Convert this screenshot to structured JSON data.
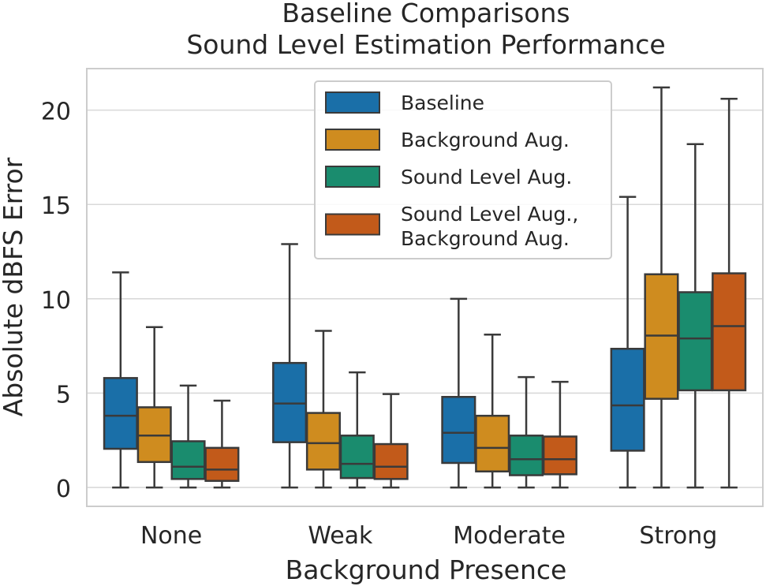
{
  "chart_data": {
    "type": "boxplot",
    "title_lines": [
      "Baseline Comparisons",
      "Sound Level Estimation Performance"
    ],
    "xlabel": "Background Presence",
    "ylabel": "Absolute dBFS Error",
    "ylim": [
      -1.0,
      22.2
    ],
    "yticks": [
      0,
      5,
      10,
      15,
      20
    ],
    "grid": "horizontal",
    "legend_position": "top-center",
    "categories": [
      "None",
      "Weak",
      "Moderate",
      "Strong"
    ],
    "series": [
      {
        "name": "Baseline",
        "legend_lines": [
          "Baseline"
        ],
        "color": "#1a6fa8",
        "boxes": [
          {
            "whislo": 0,
            "q1": 2.05,
            "med": 3.8,
            "q3": 5.8,
            "whishi": 11.4
          },
          {
            "whislo": 0,
            "q1": 2.4,
            "med": 4.45,
            "q3": 6.6,
            "whishi": 12.9
          },
          {
            "whislo": 0,
            "q1": 1.3,
            "med": 2.9,
            "q3": 4.8,
            "whishi": 10.0
          },
          {
            "whislo": 0,
            "q1": 1.95,
            "med": 4.35,
            "q3": 7.35,
            "whishi": 15.4
          }
        ]
      },
      {
        "name": "Background Aug.",
        "legend_lines": [
          "Background Aug."
        ],
        "color": "#cf8c1f",
        "boxes": [
          {
            "whislo": 0,
            "q1": 1.35,
            "med": 2.75,
            "q3": 4.25,
            "whishi": 8.5
          },
          {
            "whislo": 0,
            "q1": 0.95,
            "med": 2.35,
            "q3": 3.95,
            "whishi": 8.3
          },
          {
            "whislo": 0,
            "q1": 0.85,
            "med": 2.1,
            "q3": 3.8,
            "whishi": 8.1
          },
          {
            "whislo": 0,
            "q1": 4.7,
            "med": 8.05,
            "q3": 11.3,
            "whishi": 21.2
          }
        ]
      },
      {
        "name": "Sound Level Aug.",
        "legend_lines": [
          "Sound Level Aug."
        ],
        "color": "#1a8c6e",
        "boxes": [
          {
            "whislo": 0,
            "q1": 0.45,
            "med": 1.1,
            "q3": 2.45,
            "whishi": 5.4
          },
          {
            "whislo": 0,
            "q1": 0.5,
            "med": 1.25,
            "q3": 2.75,
            "whishi": 6.1
          },
          {
            "whislo": 0,
            "q1": 0.65,
            "med": 1.5,
            "q3": 2.75,
            "whishi": 5.85
          },
          {
            "whislo": 0,
            "q1": 5.15,
            "med": 7.9,
            "q3": 10.35,
            "whishi": 18.2
          }
        ]
      },
      {
        "name": "Sound Level Aug., Background Aug.",
        "legend_lines": [
          "Sound Level Aug.,",
          "Background Aug."
        ],
        "color": "#c25a1a",
        "boxes": [
          {
            "whislo": 0,
            "q1": 0.35,
            "med": 0.95,
            "q3": 2.1,
            "whishi": 4.6
          },
          {
            "whislo": 0,
            "q1": 0.45,
            "med": 1.1,
            "q3": 2.3,
            "whishi": 4.95
          },
          {
            "whislo": 0,
            "q1": 0.7,
            "med": 1.5,
            "q3": 2.7,
            "whishi": 5.6
          },
          {
            "whislo": 0,
            "q1": 5.15,
            "med": 8.55,
            "q3": 11.35,
            "whishi": 20.6
          }
        ]
      }
    ]
  }
}
